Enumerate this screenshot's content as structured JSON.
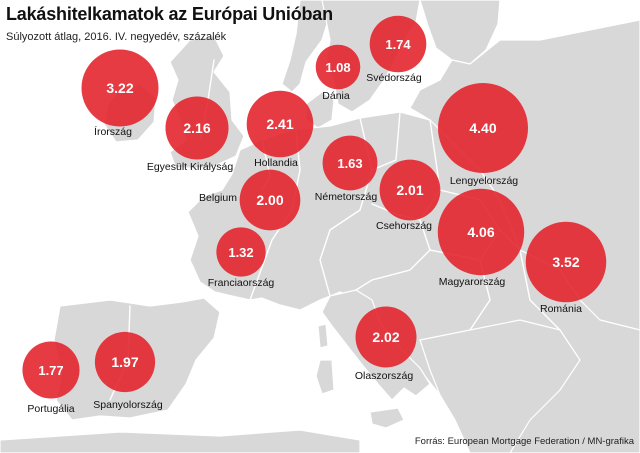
{
  "header": {
    "title": "Lakáshitelkamatok az Európai Unióban",
    "subtitle": "Súlyozott átlag, 2016. IV. negyedév, százalék"
  },
  "footer": {
    "source": "Forrás: European Mortgage Federation / MN-grafika"
  },
  "colors": {
    "sea": "#ffffff",
    "land": "#d8d8d8",
    "land_dark": "#b5b5b5",
    "border": "#ffffff",
    "bubble": "#e3262f"
  },
  "map_data": {
    "type": "bubble-map",
    "unit": "%",
    "countries": [
      {
        "id": "ireland",
        "name": "Írország",
        "value": "3.22"
      },
      {
        "id": "uk",
        "name": "Egyesült Királyság",
        "value": "2.16"
      },
      {
        "id": "netherlands",
        "name": "Hollandia",
        "value": "2.41"
      },
      {
        "id": "denmark",
        "name": "Dánia",
        "value": "1.08"
      },
      {
        "id": "sweden",
        "name": "Svédország",
        "value": "1.74"
      },
      {
        "id": "poland",
        "name": "Lengyelország",
        "value": "4.40"
      },
      {
        "id": "germany",
        "name": "Németország",
        "value": "1.63"
      },
      {
        "id": "belgium",
        "name": "Belgium",
        "value": "2.00"
      },
      {
        "id": "czechia",
        "name": "Csehország",
        "value": "2.01"
      },
      {
        "id": "hungary",
        "name": "Magyarország",
        "value": "4.06"
      },
      {
        "id": "romania",
        "name": "Románia",
        "value": "3.52"
      },
      {
        "id": "france",
        "name": "Franciaország",
        "value": "1.32"
      },
      {
        "id": "italy",
        "name": "Olaszország",
        "value": "2.02"
      },
      {
        "id": "portugal",
        "name": "Portugália",
        "value": "1.77"
      },
      {
        "id": "spain",
        "name": "Spanyolország",
        "value": "1.97"
      }
    ]
  }
}
